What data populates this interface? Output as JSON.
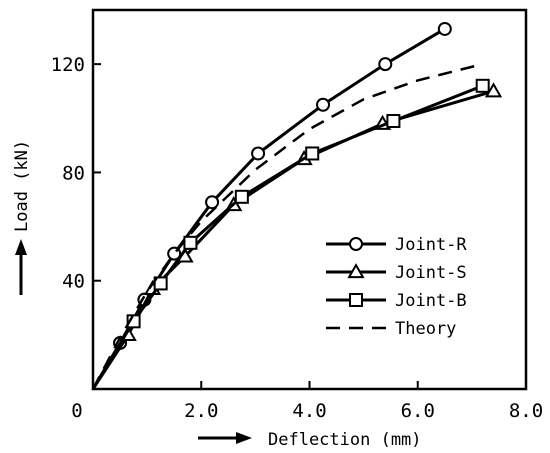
{
  "chart_data": {
    "type": "line",
    "title": "",
    "xlabel": "Deflection (mm)",
    "ylabel": "Load (kN)",
    "xlim": [
      0,
      8.0
    ],
    "ylim": [
      0,
      140
    ],
    "xticks": [
      0,
      2.0,
      4.0,
      6.0,
      8.0
    ],
    "xtick_labels": [
      "0",
      "2.0",
      "4.0",
      "6.0",
      "8.0"
    ],
    "yticks": [
      40,
      80,
      120
    ],
    "ytick_labels": [
      "40",
      "80",
      "120"
    ],
    "grid": false,
    "legend_position": "lower-right",
    "series": [
      {
        "name": "Joint-R",
        "marker": "circle",
        "style": "solid",
        "x": [
          0,
          0.5,
          0.95,
          1.5,
          2.2,
          3.05,
          4.25,
          5.4,
          6.5
        ],
        "y": [
          0,
          17,
          33,
          50,
          69,
          87,
          105,
          120,
          133
        ]
      },
      {
        "name": "Joint-S",
        "marker": "triangle",
        "style": "solid",
        "x": [
          0,
          0.65,
          1.1,
          1.7,
          2.6,
          3.9,
          5.35,
          7.4
        ],
        "y": [
          0,
          20,
          37,
          49,
          68,
          85,
          98,
          110
        ]
      },
      {
        "name": "Joint-B",
        "marker": "square",
        "style": "solid",
        "x": [
          0,
          0.75,
          1.25,
          1.8,
          2.75,
          4.05,
          5.55,
          7.2
        ],
        "y": [
          0,
          25,
          39,
          54,
          71,
          87,
          99,
          112
        ]
      },
      {
        "name": "Theory",
        "marker": "none",
        "style": "dashed",
        "x": [
          0,
          0.5,
          1.0,
          1.5,
          2.0,
          3.0,
          4.0,
          5.0,
          6.0,
          7.2
        ],
        "y": [
          0,
          19,
          36,
          50,
          62,
          81,
          96,
          107,
          114,
          120
        ]
      }
    ]
  }
}
